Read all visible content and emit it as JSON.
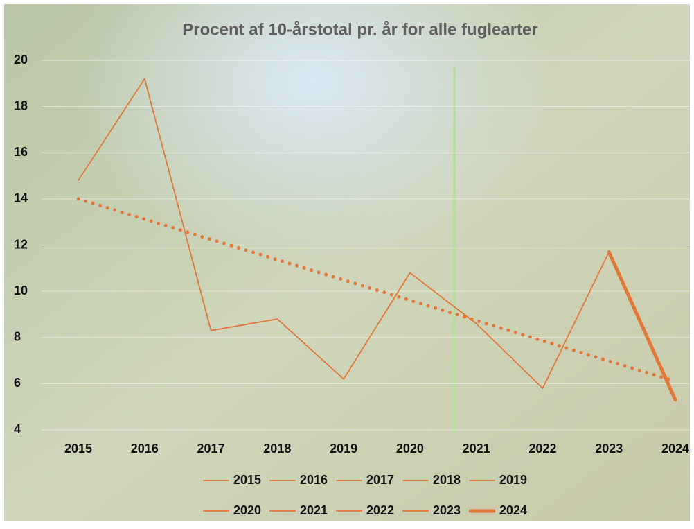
{
  "chart_data": {
    "type": "line",
    "title": "Procent af 10-årstotal pr. år for alle fuglearter",
    "categories": [
      "2015",
      "2016",
      "2017",
      "2018",
      "2019",
      "2020",
      "2021",
      "2022",
      "2023",
      "2024"
    ],
    "values": [
      14.8,
      19.2,
      8.3,
      8.8,
      6.2,
      10.8,
      8.6,
      5.8,
      11.7,
      5.3
    ],
    "color": "#e2773a",
    "highlight_index": 9,
    "trendline": {
      "style": "dotted",
      "values": [
        14.0,
        6.1
      ]
    },
    "ylim": [
      4,
      20
    ],
    "yticks": [
      4,
      6,
      8,
      10,
      12,
      14,
      16,
      18,
      20
    ],
    "grid": true,
    "legend": "bottom"
  }
}
